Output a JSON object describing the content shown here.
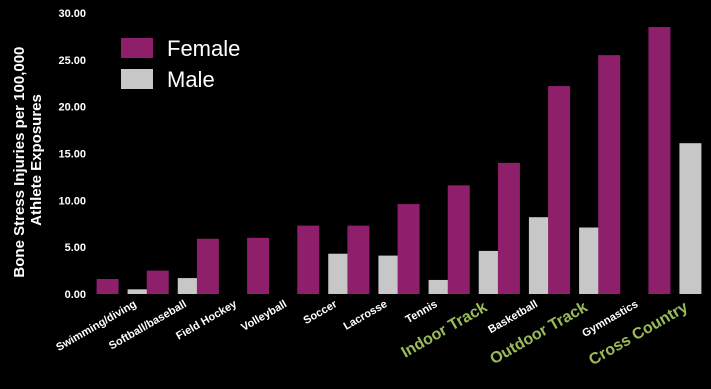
{
  "chart_data": {
    "type": "bar",
    "ylabel_lines": [
      "Bone Stress Injuries per 100,000",
      "Athlete Exposures"
    ],
    "ylim": [
      0,
      30
    ],
    "yticks": [
      "0.00",
      "5.00",
      "10.00",
      "15.00",
      "20.00",
      "25.00",
      "30.00"
    ],
    "ytick_values": [
      0,
      5,
      10,
      15,
      20,
      25,
      30
    ],
    "grid": false,
    "legend_position": "top-left",
    "categories": [
      "Swimming/diving",
      "Softball/baseball",
      "Field Hockey",
      "Volleyball",
      "Soccer",
      "Lacrosse",
      "Tennis",
      "Indoor Track",
      "Basketball",
      "Outdoor Track",
      "Gymnastics",
      "Cross Country"
    ],
    "highlighted_categories": [
      "Indoor Track",
      "Outdoor Track",
      "Cross Country"
    ],
    "series": [
      {
        "name": "Female",
        "color": "#8e1f6b",
        "values": [
          1.6,
          2.5,
          5.9,
          6.0,
          7.3,
          7.3,
          9.6,
          11.6,
          14.0,
          22.2,
          25.5,
          28.5
        ]
      },
      {
        "name": "Male",
        "color": "#c7c7c7",
        "values": [
          0.5,
          1.7,
          null,
          null,
          4.3,
          4.1,
          1.5,
          4.6,
          8.2,
          7.1,
          null,
          16.1
        ]
      }
    ],
    "label_color": "#ffffff",
    "highlight_color": "#9bbb59"
  }
}
